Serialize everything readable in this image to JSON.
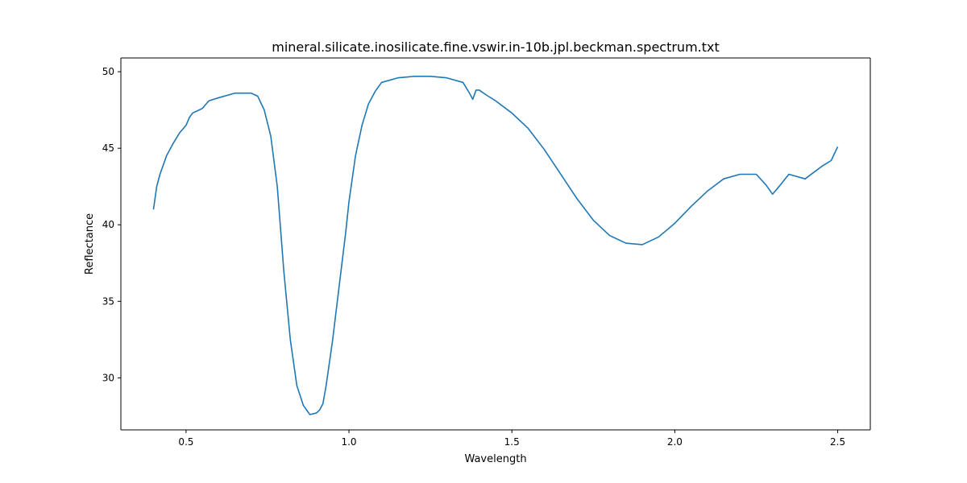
{
  "chart_data": {
    "type": "line",
    "title": "mineral.silicate.inosilicate.fine.vswir.in-10b.jpl.beckman.spectrum.txt",
    "xlabel": "Wavelength",
    "ylabel": "Reflectance",
    "xlim": [
      0.3,
      2.6
    ],
    "ylim": [
      26.6,
      50.9
    ],
    "xticks": [
      0.5,
      1.0,
      1.5,
      2.0,
      2.5
    ],
    "xtick_labels": [
      "0.5",
      "1.0",
      "1.5",
      "2.0",
      "2.5"
    ],
    "yticks": [
      30,
      35,
      40,
      45,
      50
    ],
    "ytick_labels": [
      "30",
      "35",
      "40",
      "45",
      "50"
    ],
    "grid": false,
    "series": [
      {
        "color": "#1f77b4",
        "x": [
          0.4,
          0.41,
          0.42,
          0.44,
          0.46,
          0.48,
          0.5,
          0.51,
          0.52,
          0.55,
          0.57,
          0.6,
          0.65,
          0.7,
          0.72,
          0.74,
          0.76,
          0.78,
          0.8,
          0.82,
          0.84,
          0.86,
          0.88,
          0.9,
          0.91,
          0.92,
          0.93,
          0.95,
          0.97,
          0.99,
          1.0,
          1.02,
          1.04,
          1.06,
          1.08,
          1.1,
          1.15,
          1.2,
          1.25,
          1.3,
          1.35,
          1.37,
          1.38,
          1.39,
          1.4,
          1.42,
          1.45,
          1.5,
          1.55,
          1.6,
          1.65,
          1.7,
          1.75,
          1.8,
          1.85,
          1.9,
          1.95,
          2.0,
          2.05,
          2.1,
          2.15,
          2.2,
          2.25,
          2.28,
          2.3,
          2.32,
          2.35,
          2.4,
          2.45,
          2.48,
          2.5
        ],
        "y": [
          41.0,
          42.5,
          43.3,
          44.5,
          45.3,
          46.0,
          46.5,
          47.0,
          47.3,
          47.6,
          48.1,
          48.3,
          48.6,
          48.6,
          48.4,
          47.5,
          45.8,
          42.5,
          37.0,
          32.5,
          29.5,
          28.2,
          27.6,
          27.7,
          27.9,
          28.3,
          29.5,
          32.5,
          36.0,
          39.5,
          41.5,
          44.5,
          46.5,
          47.9,
          48.7,
          49.3,
          49.6,
          49.7,
          49.7,
          49.6,
          49.3,
          48.6,
          48.2,
          48.8,
          48.8,
          48.5,
          48.1,
          47.3,
          46.3,
          44.9,
          43.3,
          41.7,
          40.3,
          39.3,
          38.8,
          38.7,
          39.2,
          40.1,
          41.2,
          42.2,
          43.0,
          43.3,
          43.3,
          42.6,
          42.0,
          42.5,
          43.3,
          43.0,
          43.8,
          44.2,
          45.1
        ]
      }
    ]
  }
}
